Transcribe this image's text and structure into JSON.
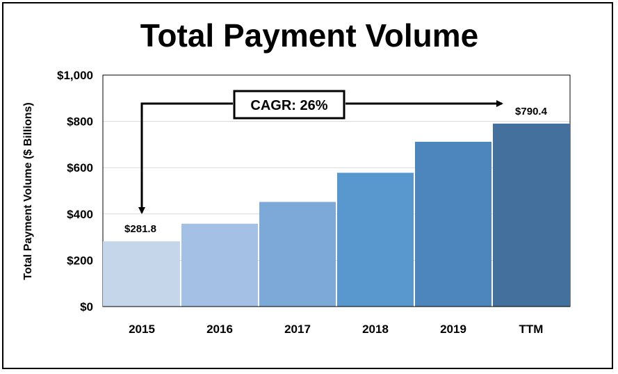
{
  "chart_data": {
    "type": "bar",
    "title": "Total Payment Volume",
    "ylabel": "Total Payment Volume ($ Billions)",
    "xlabel": "",
    "categories": [
      "2015",
      "2016",
      "2017",
      "2018",
      "2019",
      "TTM"
    ],
    "values": [
      281.8,
      358,
      452,
      578,
      712,
      790.4
    ],
    "colors": [
      "#c5d5ea",
      "#a4c0e4",
      "#7da9d9",
      "#5898cf",
      "#4d86bc",
      "#43709d"
    ],
    "ylim": [
      0,
      1000
    ],
    "yticks": [
      0,
      200,
      400,
      600,
      800,
      1000
    ],
    "ytick_labels": [
      "$0",
      "$200",
      "$400",
      "$600",
      "$800",
      "$1,000"
    ],
    "data_labels": [
      {
        "index": 0,
        "text": "$281.8"
      },
      {
        "index": 5,
        "text": "$790.4"
      }
    ],
    "annotation": {
      "text": "CAGR: 26%",
      "from_index": 5,
      "to_index": 0
    },
    "grid": true,
    "legend": "none"
  }
}
